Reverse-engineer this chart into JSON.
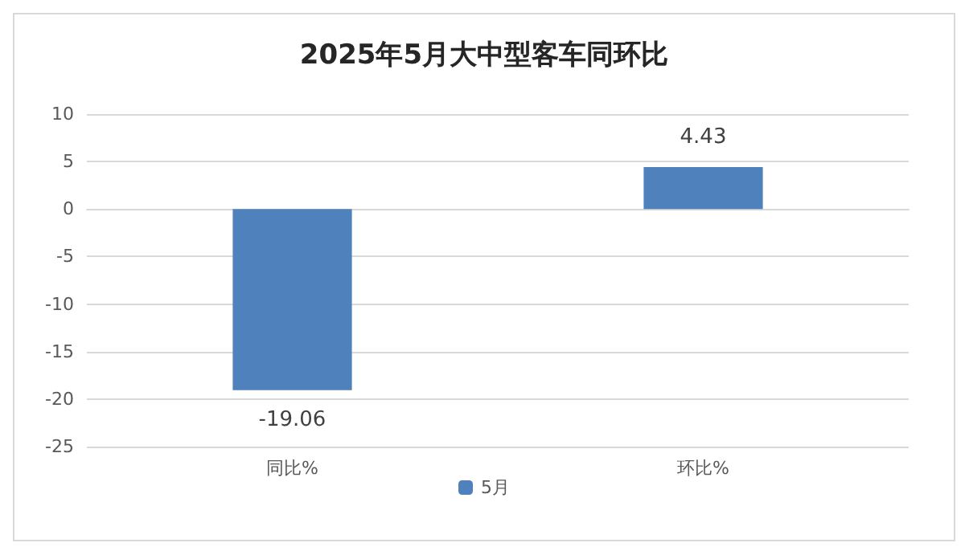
{
  "chart_data": {
    "type": "bar",
    "title": "2025年5月大中型客车同环比",
    "categories": [
      "同比%",
      "环比%"
    ],
    "series": [
      {
        "name": "5月",
        "color": "#4f81bd",
        "values": [
          -19.06,
          4.43
        ]
      }
    ],
    "ylim": [
      -25,
      10
    ],
    "yticks": [
      -25,
      -20,
      -15,
      -10,
      -5,
      0,
      5,
      10
    ],
    "grid": "y",
    "legend": "bottom",
    "data_labels": true
  }
}
